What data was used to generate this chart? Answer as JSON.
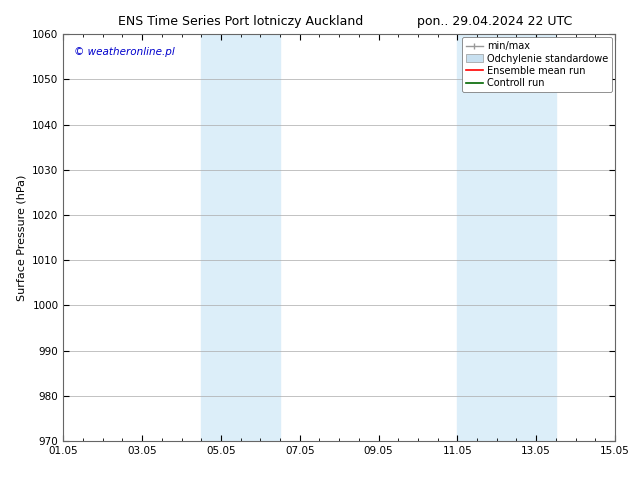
{
  "title_left": "ENS Time Series Port lotniczy Auckland",
  "title_right": "pon.. 29.04.2024 22 UTC",
  "ylabel": "Surface Pressure (hPa)",
  "xlim": [
    0,
    14
  ],
  "ylim": [
    970,
    1060
  ],
  "yticks": [
    970,
    980,
    990,
    1000,
    1010,
    1020,
    1030,
    1040,
    1050,
    1060
  ],
  "xtick_labels": [
    "01.05",
    "03.05",
    "05.05",
    "07.05",
    "09.05",
    "11.05",
    "13.05",
    "15.05"
  ],
  "xtick_positions": [
    0,
    2,
    4,
    6,
    8,
    10,
    12,
    14
  ],
  "shaded_regions": [
    {
      "xmin": 3.5,
      "xmax": 5.5
    },
    {
      "xmin": 10.0,
      "xmax": 12.5
    }
  ],
  "shaded_color": "#dceef9",
  "watermark_text": "© weatheronline.pl",
  "watermark_color": "#0000cc",
  "title_fontsize": 9,
  "axis_label_fontsize": 8,
  "tick_fontsize": 7.5,
  "watermark_fontsize": 7.5,
  "legend_fontsize": 7,
  "background_color": "#ffffff",
  "grid_color": "#aaaaaa",
  "spine_color": "#666666",
  "legend_minmax_color": "#999999",
  "legend_std_color": "#c8e0f0",
  "legend_ensemble_color": "#ff0000",
  "legend_control_color": "#006600"
}
